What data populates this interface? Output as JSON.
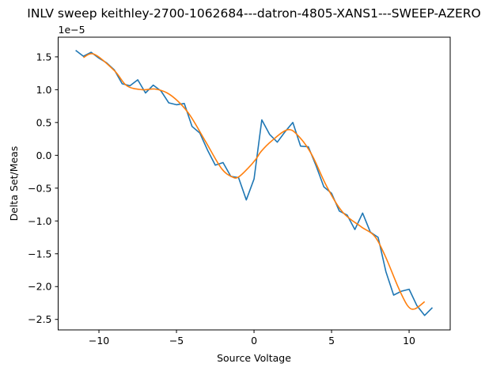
{
  "chart_data": {
    "type": "line",
    "title": "INLV sweep keithley-2700-1062684---datron-4805-XANS1---SWEEP-AZERO",
    "xlabel": "Source Voltage",
    "ylabel": "Delta Set/Meas",
    "y_offset_text": "1e−5",
    "xlim": [
      -12.63,
      12.65
    ],
    "ylim": [
      -2.66,
      1.8
    ],
    "y_scale_note": "values in units of 1e-5",
    "grid": false,
    "xticks": [
      -10,
      -5,
      0,
      5,
      10
    ],
    "xtick_labels": [
      "−10",
      "−5",
      "0",
      "5",
      "10"
    ],
    "yticks": [
      -2.5,
      -2.0,
      -1.5,
      -1.0,
      -0.5,
      0.0,
      0.5,
      1.0,
      1.5
    ],
    "ytick_labels": [
      "−2.5",
      "−2.0",
      "−1.5",
      "−1.0",
      "−0.5",
      "0.0",
      "0.5",
      "1.0",
      "1.5"
    ],
    "series": [
      {
        "color": "#1f77b4",
        "x": [
          -11.5,
          -11,
          -10.5,
          -10,
          -9.5,
          -9,
          -8.5,
          -8,
          -7.5,
          -7,
          -6.5,
          -6,
          -5.5,
          -5,
          -4.5,
          -4,
          -3.5,
          -3,
          -2.5,
          -2,
          -1.5,
          -1,
          -0.5,
          0,
          0.5,
          1,
          1.5,
          2,
          2.5,
          3,
          3.5,
          4,
          4.5,
          5,
          5.5,
          6,
          6.5,
          7,
          7.5,
          8,
          8.5,
          9,
          9.5,
          10,
          10.5,
          11,
          11.5
        ],
        "y": [
          1.6,
          1.51,
          1.57,
          1.48,
          1.41,
          1.3,
          1.09,
          1.06,
          1.15,
          0.95,
          1.07,
          0.98,
          0.8,
          0.77,
          0.79,
          0.44,
          0.34,
          0.08,
          -0.15,
          -0.11,
          -0.32,
          -0.34,
          -0.68,
          -0.36,
          0.54,
          0.32,
          0.2,
          0.36,
          0.5,
          0.14,
          0.13,
          -0.16,
          -0.48,
          -0.58,
          -0.85,
          -0.91,
          -1.13,
          -0.88,
          -1.17,
          -1.25,
          -1.77,
          -2.13,
          -2.07,
          -2.04,
          -2.29,
          -2.44,
          -2.32
        ]
      },
      {
        "color": "#ff7f0e",
        "x": [
          -11,
          -10.3,
          -9,
          -8.2,
          -7.2,
          -6.4,
          -5.6,
          -4.8,
          -4.1,
          -3.1,
          -2.1,
          -1.4,
          -1.0,
          -0.4,
          0.12,
          0.46,
          1.14,
          2.16,
          2.84,
          3.7,
          4.7,
          5.73,
          6.92,
          7.77,
          8.45,
          9.3,
          9.9,
          10.36,
          11
        ],
        "y": [
          1.49,
          1.54,
          1.29,
          1.06,
          1.0,
          1.01,
          0.95,
          0.8,
          0.6,
          0.2,
          -0.2,
          -0.33,
          -0.33,
          -0.2,
          -0.06,
          0.06,
          0.22,
          0.39,
          0.3,
          0.02,
          -0.48,
          -0.87,
          -1.09,
          -1.23,
          -1.53,
          -2.01,
          -2.29,
          -2.34,
          -2.23
        ]
      }
    ]
  }
}
